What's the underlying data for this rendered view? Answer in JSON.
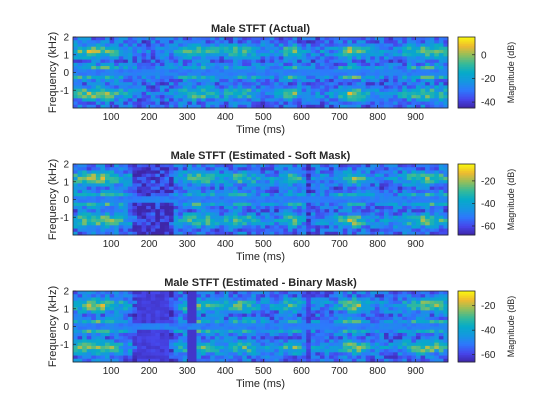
{
  "figure": {
    "x_tick_labels": [
      "100",
      "200",
      "300",
      "400",
      "500",
      "600",
      "700",
      "800",
      "900"
    ],
    "y_tick_labels": [
      "2",
      "1",
      "0",
      "-1"
    ],
    "xlabel": "Time (ms)",
    "ylabel": "Frequency (kHz)",
    "colorbar_label": "Magnitude (dB)"
  },
  "chart_data": [
    {
      "type": "heatmap",
      "title": "Male STFT (Actual)",
      "xlabel": "Time (ms)",
      "ylabel": "Frequency (kHz)",
      "xlim": [
        0,
        985
      ],
      "ylim": [
        -2,
        2
      ],
      "x_ticks": [
        100,
        200,
        300,
        400,
        500,
        600,
        700,
        800,
        900
      ],
      "y_ticks": [
        2,
        1,
        0,
        -1
      ],
      "colorbar": {
        "label": "Magnitude (dB)",
        "ticks": [
          0,
          -20,
          -40
        ],
        "tick_labels": [
          "0",
          "-20",
          "-40"
        ],
        "range": [
          -45,
          15
        ]
      },
      "colormap": "parula",
      "grid": false
    },
    {
      "type": "heatmap",
      "title": "Male STFT (Estimated - Soft Mask)",
      "xlabel": "Time (ms)",
      "ylabel": "Frequency (kHz)",
      "xlim": [
        0,
        985
      ],
      "ylim": [
        -2,
        2
      ],
      "x_ticks": [
        100,
        200,
        300,
        400,
        500,
        600,
        700,
        800,
        900
      ],
      "y_ticks": [
        2,
        1,
        0,
        -1
      ],
      "colorbar": {
        "label": "Magnitude (dB)",
        "ticks": [
          -20,
          -40,
          -60
        ],
        "tick_labels": [
          "-20",
          "-40",
          "-60"
        ],
        "range": [
          -68,
          -5
        ]
      },
      "colormap": "parula",
      "grid": false
    },
    {
      "type": "heatmap",
      "title": "Male STFT (Estimated - Binary Mask)",
      "xlabel": "Time (ms)",
      "ylabel": "Frequency (kHz)",
      "xlim": [
        0,
        985
      ],
      "ylim": [
        -2,
        2
      ],
      "x_ticks": [
        100,
        200,
        300,
        400,
        500,
        600,
        700,
        800,
        900
      ],
      "y_ticks": [
        2,
        1,
        0,
        -1
      ],
      "colorbar": {
        "label": "Magnitude (dB)",
        "ticks": [
          -20,
          -40,
          -60
        ],
        "tick_labels": [
          "-20",
          "-40",
          "-60"
        ],
        "range": [
          -66,
          -8
        ]
      },
      "colormap": "parula",
      "grid": false
    }
  ]
}
